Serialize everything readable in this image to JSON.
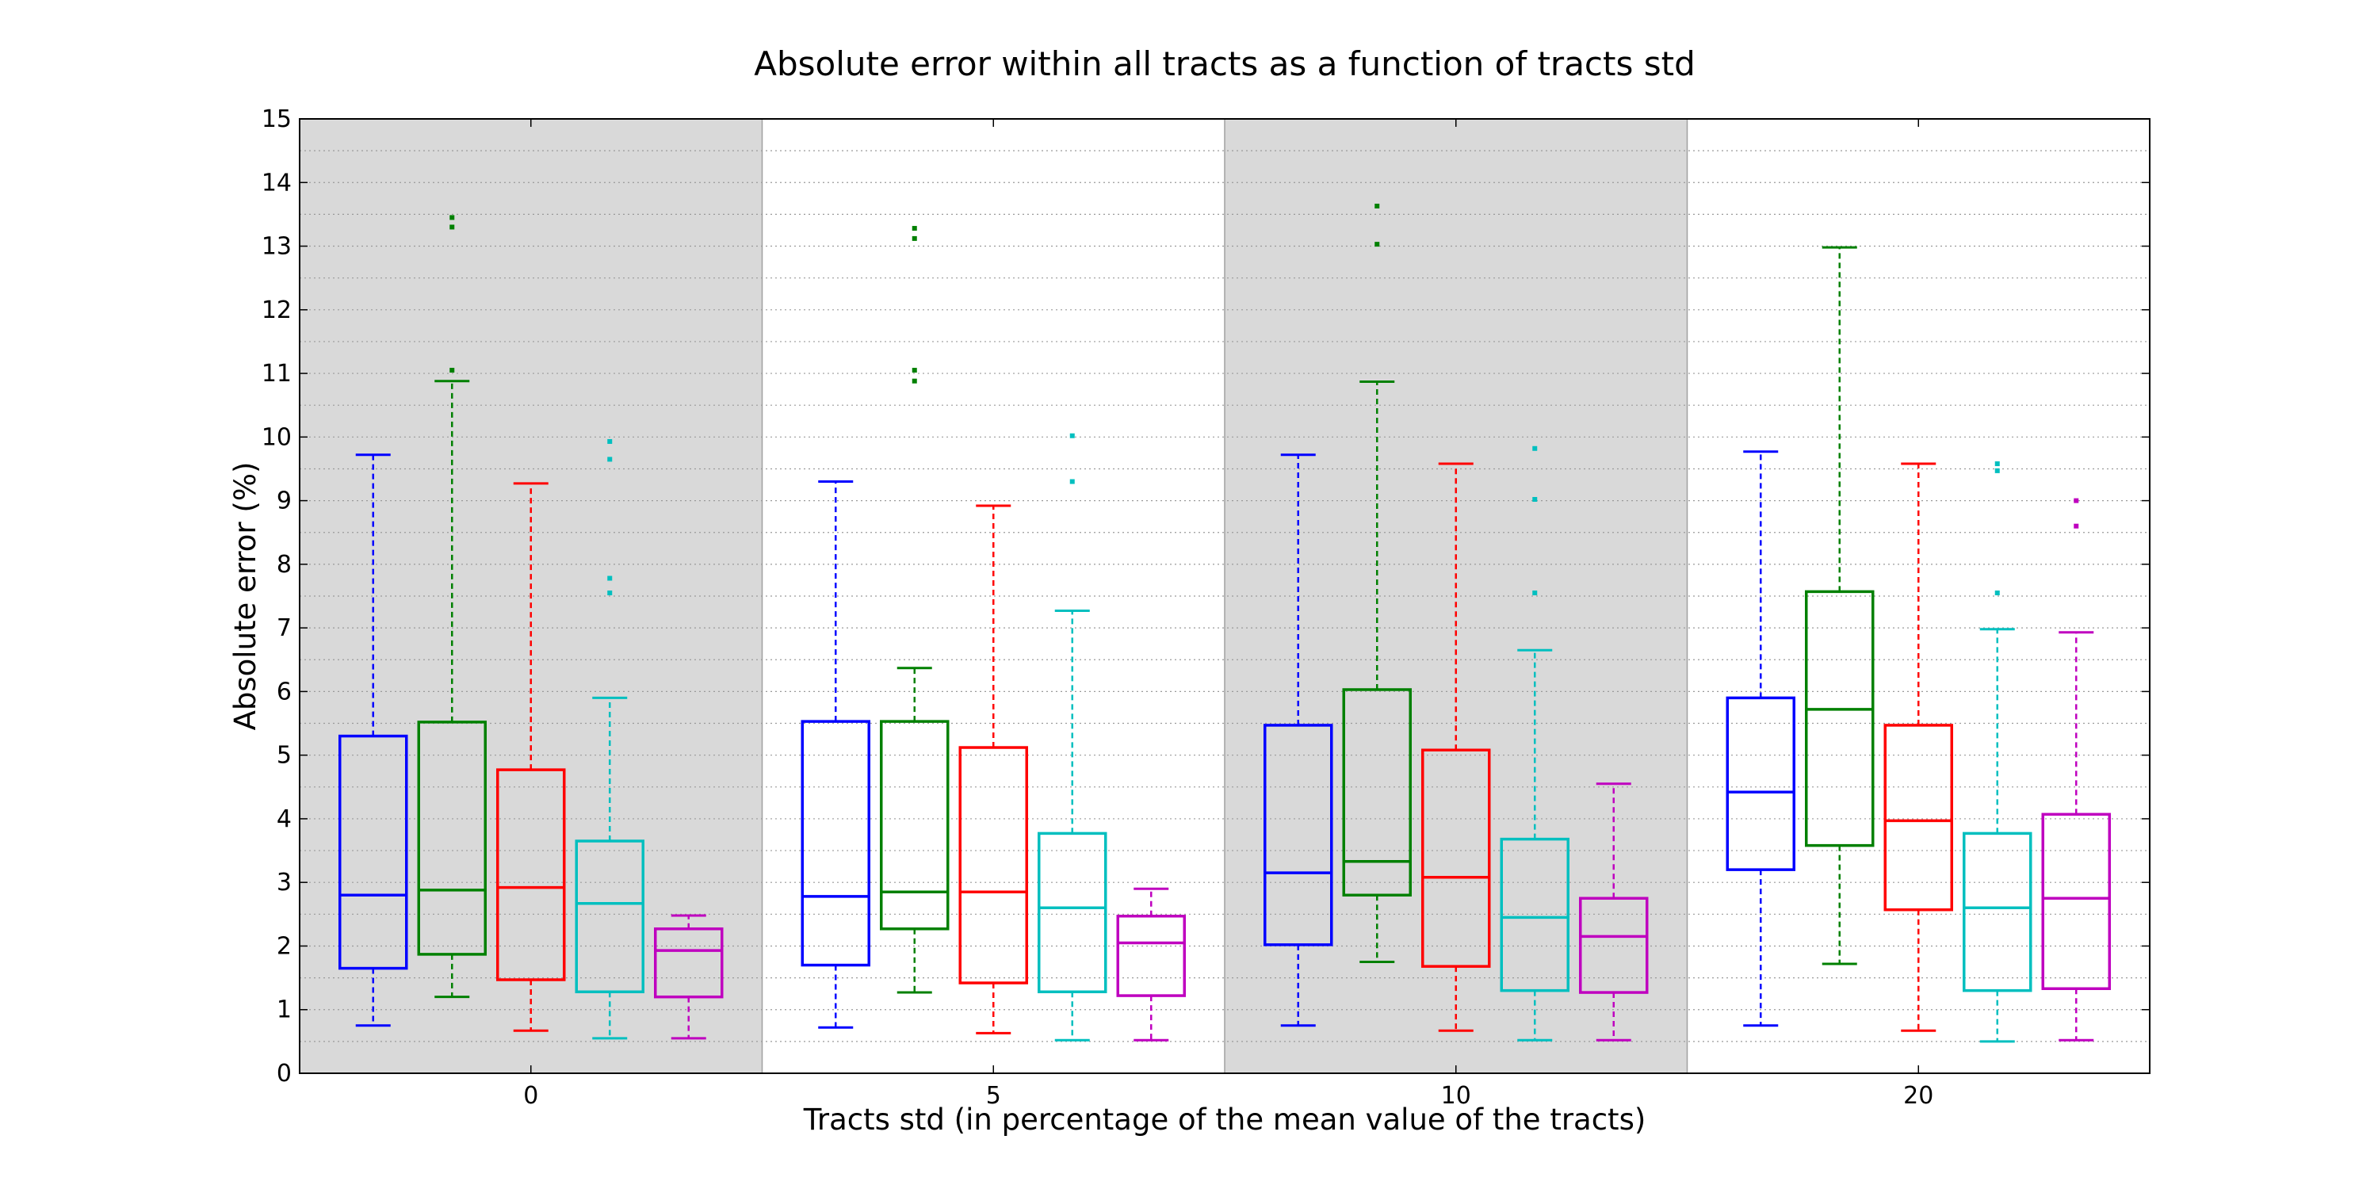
{
  "chart_data": {
    "type": "box",
    "title": "Absolute error within all tracts as a function of tracts std",
    "xlabel": "Tracts std (in percentage of the mean value of the tracts)",
    "ylabel": "Absolute error (%)",
    "ylim": [
      0,
      15
    ],
    "yticks": [
      0,
      1,
      2,
      3,
      4,
      5,
      6,
      7,
      8,
      9,
      10,
      11,
      12,
      13,
      14,
      15
    ],
    "grid": "horizontal dotted",
    "background_bands": "alternating grey/white per group",
    "colors": {
      "blue": "#0000ff",
      "green": "#008000",
      "red": "#ff0000",
      "cyan": "#00bfbf",
      "magenta": "#bf00bf",
      "band": "#d9d9d9",
      "grid": "#9a9a9a"
    },
    "series_colors": [
      "blue",
      "green",
      "red",
      "cyan",
      "magenta"
    ],
    "groups": [
      {
        "label": "0",
        "shaded": true,
        "boxes": [
          {
            "color": "blue",
            "whisker_low": 0.75,
            "q1": 1.65,
            "median": 2.8,
            "q3": 5.3,
            "whisker_high": 9.72,
            "outliers": []
          },
          {
            "color": "green",
            "whisker_low": 1.2,
            "q1": 1.87,
            "median": 2.88,
            "q3": 5.52,
            "whisker_high": 10.88,
            "outliers": [
              11.05,
              13.3,
              13.45
            ]
          },
          {
            "color": "red",
            "whisker_low": 0.67,
            "q1": 1.47,
            "median": 2.92,
            "q3": 4.77,
            "whisker_high": 9.27,
            "outliers": []
          },
          {
            "color": "cyan",
            "whisker_low": 0.55,
            "q1": 1.28,
            "median": 2.67,
            "q3": 3.65,
            "whisker_high": 5.9,
            "outliers": [
              7.55,
              7.78,
              9.65,
              9.93
            ]
          },
          {
            "color": "magenta",
            "whisker_low": 0.55,
            "q1": 1.2,
            "median": 1.93,
            "q3": 2.27,
            "whisker_high": 2.48,
            "outliers": []
          }
        ]
      },
      {
        "label": "5",
        "shaded": false,
        "boxes": [
          {
            "color": "blue",
            "whisker_low": 0.72,
            "q1": 1.7,
            "median": 2.78,
            "q3": 5.53,
            "whisker_high": 9.3,
            "outliers": []
          },
          {
            "color": "green",
            "whisker_low": 1.27,
            "q1": 2.27,
            "median": 2.85,
            "q3": 5.53,
            "whisker_high": 6.37,
            "outliers": [
              10.88,
              11.05,
              13.12,
              13.28
            ]
          },
          {
            "color": "red",
            "whisker_low": 0.63,
            "q1": 1.42,
            "median": 2.85,
            "q3": 5.12,
            "whisker_high": 8.92,
            "outliers": []
          },
          {
            "color": "cyan",
            "whisker_low": 0.52,
            "q1": 1.28,
            "median": 2.6,
            "q3": 3.77,
            "whisker_high": 7.27,
            "outliers": [
              9.3,
              10.02
            ]
          },
          {
            "color": "magenta",
            "whisker_low": 0.52,
            "q1": 1.22,
            "median": 2.05,
            "q3": 2.47,
            "whisker_high": 2.9,
            "outliers": []
          }
        ]
      },
      {
        "label": "10",
        "shaded": true,
        "boxes": [
          {
            "color": "blue",
            "whisker_low": 0.75,
            "q1": 2.02,
            "median": 3.15,
            "q3": 5.47,
            "whisker_high": 9.72,
            "outliers": []
          },
          {
            "color": "green",
            "whisker_low": 1.75,
            "q1": 2.8,
            "median": 3.33,
            "q3": 6.03,
            "whisker_high": 10.87,
            "outliers": [
              13.03,
              13.63
            ]
          },
          {
            "color": "red",
            "whisker_low": 0.67,
            "q1": 1.68,
            "median": 3.08,
            "q3": 5.08,
            "whisker_high": 9.58,
            "outliers": []
          },
          {
            "color": "cyan",
            "whisker_low": 0.52,
            "q1": 1.3,
            "median": 2.45,
            "q3": 3.68,
            "whisker_high": 6.65,
            "outliers": [
              7.55,
              9.02,
              9.82
            ]
          },
          {
            "color": "magenta",
            "whisker_low": 0.52,
            "q1": 1.27,
            "median": 2.15,
            "q3": 2.75,
            "whisker_high": 4.55,
            "outliers": []
          }
        ]
      },
      {
        "label": "20",
        "shaded": false,
        "boxes": [
          {
            "color": "blue",
            "whisker_low": 0.75,
            "q1": 3.2,
            "median": 4.42,
            "q3": 5.9,
            "whisker_high": 9.77,
            "outliers": []
          },
          {
            "color": "green",
            "whisker_low": 1.72,
            "q1": 3.58,
            "median": 5.72,
            "q3": 7.57,
            "whisker_high": 12.98,
            "outliers": []
          },
          {
            "color": "red",
            "whisker_low": 0.67,
            "q1": 2.57,
            "median": 3.97,
            "q3": 5.47,
            "whisker_high": 9.58,
            "outliers": []
          },
          {
            "color": "cyan",
            "whisker_low": 0.5,
            "q1": 1.3,
            "median": 2.6,
            "q3": 3.77,
            "whisker_high": 6.98,
            "outliers": [
              7.55,
              9.47,
              9.58
            ]
          },
          {
            "color": "magenta",
            "whisker_low": 0.52,
            "q1": 1.33,
            "median": 2.75,
            "q3": 4.07,
            "whisker_high": 6.93,
            "outliers": [
              8.6,
              9.0
            ]
          }
        ]
      }
    ]
  }
}
